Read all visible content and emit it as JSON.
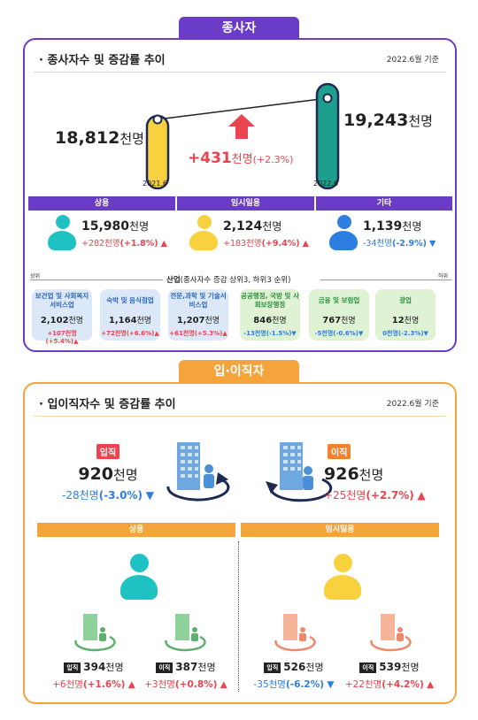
{
  "section1": {
    "tab": "종사자",
    "title": "종사자수 및 증감률 추이",
    "date": "2022.6월 기준",
    "left": {
      "value": "18,812",
      "unit": "천명",
      "label": "2021.6"
    },
    "right": {
      "value": "19,243",
      "unit": "천명",
      "label": "2022.6"
    },
    "change": {
      "value": "+431",
      "unit": "천명",
      "pct": "(+2.3%)"
    },
    "categories": [
      {
        "head": "상용",
        "value": "15,980",
        "unit": "천명",
        "chg": "+282천명",
        "pct": "(+1.8%)",
        "dir": "up"
      },
      {
        "head": "임시일용",
        "value": "2,124",
        "unit": "천명",
        "chg": "+183천명",
        "pct": "(+9.4%)",
        "dir": "up"
      },
      {
        "head": "기타",
        "value": "1,139",
        "unit": "천명",
        "chg": "-34천명",
        "pct": "(-2.9%)",
        "dir": "down"
      }
    ],
    "industry_header": {
      "left": "상위",
      "title": "산업",
      "subtitle": "(종사자수 증감 상위3, 하위3 순위)",
      "right": "하위"
    },
    "industries": [
      {
        "name": "보건업 및 사회복지 서비스업",
        "value": "2,102",
        "unit": "천명",
        "chg": "+107천명(+5.4%)",
        "dir": "up",
        "color": "#dce8f7"
      },
      {
        "name": "숙박 및 음식점업",
        "value": "1,164",
        "unit": "천명",
        "chg": "+72천명(+6.6%)",
        "dir": "up",
        "color": "#dce8f7"
      },
      {
        "name": "전문,과학 및 기술서비스업",
        "value": "1,207",
        "unit": "천명",
        "chg": "+61천명(+5.3%)",
        "dir": "up",
        "color": "#dce8f7"
      },
      {
        "name": "공공행정, 국방 및 사회보장행정",
        "value": "846",
        "unit": "천명",
        "chg": "-13천명(-1.5%)",
        "dir": "down",
        "color": "#dff2d4"
      },
      {
        "name": "금융 및 보험업",
        "value": "767",
        "unit": "천명",
        "chg": "-5천명(-0.6%)",
        "dir": "down",
        "color": "#dff2d4"
      },
      {
        "name": "광업",
        "value": "12",
        "unit": "천명",
        "chg": "0천명(-2.3%)",
        "dir": "down",
        "color": "#dff2d4"
      }
    ]
  },
  "section2": {
    "tab": "입·이직자",
    "title": "입이직자수 및 증감률 추이",
    "date": "2022.6월 기준",
    "hire": {
      "badge": "입직",
      "value": "920",
      "unit": "천명",
      "chg": "-28천명",
      "pct": "(-3.0%)",
      "dir": "down"
    },
    "sep": {
      "badge": "이직",
      "value": "926",
      "unit": "천명",
      "chg": "+25천명",
      "pct": "(+2.7%)",
      "dir": "up"
    },
    "groups": [
      {
        "head": "상용",
        "items": [
          {
            "badge": "입직",
            "value": "394",
            "unit": "천명",
            "chg": "+6천명",
            "pct": "(+1.6%)",
            "dir": "up"
          },
          {
            "badge": "이직",
            "value": "387",
            "unit": "천명",
            "chg": "+3천명",
            "pct": "(+0.8%)",
            "dir": "up"
          }
        ]
      },
      {
        "head": "임시일용",
        "items": [
          {
            "badge": "입직",
            "value": "526",
            "unit": "천명",
            "chg": "-35천명",
            "pct": "(-6.2%)",
            "dir": "down"
          },
          {
            "badge": "이직",
            "value": "539",
            "unit": "천명",
            "chg": "+22천명",
            "pct": "(+4.2%)",
            "dir": "up"
          }
        ]
      }
    ]
  },
  "colors": {
    "purple": "#6a3bc7",
    "orange": "#f5a33b",
    "teal": "#1fc2c2",
    "yellow": "#f7d23e",
    "green_dark": "#1e9e8c",
    "red": "#e9444f",
    "blue": "#2c7ee0",
    "navy": "#1f2a52"
  }
}
